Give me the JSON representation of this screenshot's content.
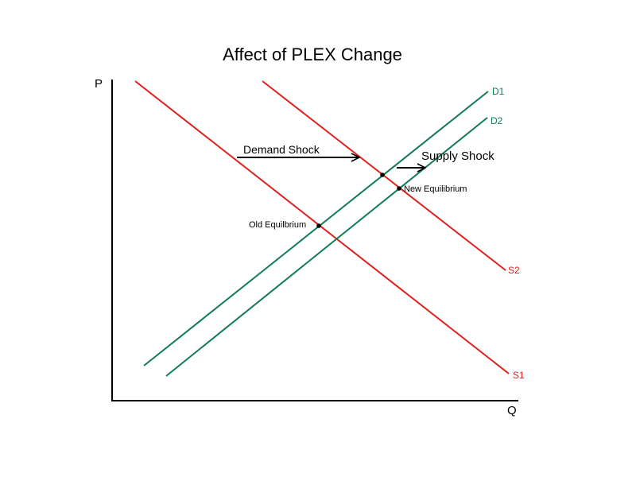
{
  "title": "Affect of PLEX Change",
  "axes": {
    "y_label": "P",
    "x_label": "Q"
  },
  "curves": {
    "s1": "S1",
    "s2": "S2",
    "d1": "D1",
    "d2": "D2"
  },
  "annotations": {
    "demand_shock": "Demand Shock",
    "supply_shock": "Supply Shock",
    "old_equilibrium": "Old Equilbrium",
    "new_equilibrium": "New Equilibrium"
  },
  "colors": {
    "supply": "#e02020",
    "demand": "#127c50",
    "axis": "#000000"
  }
}
